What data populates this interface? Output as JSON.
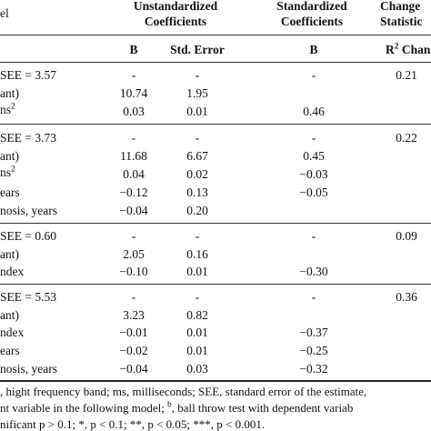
{
  "table": {
    "header": {
      "col_model": "el",
      "col_unstd": [
        "Unstandardized",
        "Coefficients"
      ],
      "col_std": [
        "Standardized",
        "Coefficients"
      ],
      "col_change": [
        "Change",
        "Statistic"
      ],
      "sub_b1": "B",
      "sub_se": "Std. Error",
      "sub_b2": "B",
      "sub_r2_pre": "R",
      "sub_r2_sup": "2",
      "sub_r2_post": " Chang"
    },
    "blocks": [
      {
        "rows": [
          {
            "label": "SEE = 3.57",
            "sup": "",
            "b": "-",
            "se": "-",
            "beta": "-",
            "r2": "0.21"
          },
          {
            "label": "ant)",
            "sup": "",
            "b": "10.74",
            "se": "1.95",
            "beta": "",
            "r2": ""
          },
          {
            "label": "ns",
            "sup": "2",
            "b": "0.03",
            "se": "0.01",
            "beta": "0.46",
            "r2": ""
          }
        ]
      },
      {
        "rows": [
          {
            "label": "SEE = 3.73",
            "sup": "",
            "b": "-",
            "se": "-",
            "beta": "-",
            "r2": "0.22"
          },
          {
            "label": "ant)",
            "sup": "",
            "b": "11.68",
            "se": "6.67",
            "beta": "0.45",
            "r2": ""
          },
          {
            "label": "ns",
            "sup": "2",
            "b": "0.04",
            "se": "0.02",
            "beta": "−0.03",
            "r2": ""
          },
          {
            "label": "ears",
            "sup": "",
            "b": "−0.12",
            "se": "0.13",
            "beta": "−0.05",
            "r2": ""
          },
          {
            "label": "nosis, years",
            "sup": "",
            "b": "−0.04",
            "se": "0.20",
            "beta": "",
            "r2": ""
          }
        ]
      },
      {
        "rows": [
          {
            "label": "SEE = 0.60",
            "sup": "",
            "b": "-",
            "se": "-",
            "beta": "-",
            "r2": "0.09"
          },
          {
            "label": "ant)",
            "sup": "",
            "b": "2.05",
            "se": "0.16",
            "beta": "",
            "r2": ""
          },
          {
            "label": "ndex",
            "sup": "",
            "b": "−0.10",
            "se": "0.01",
            "beta": "−0.30",
            "r2": ""
          }
        ]
      },
      {
        "rows": [
          {
            "label": "SEE = 5.53",
            "sup": "",
            "b": "-",
            "se": "-",
            "beta": "-",
            "r2": "0.36"
          },
          {
            "label": "ant)",
            "sup": "",
            "b": "3.23",
            "se": "0.82",
            "beta": "",
            "r2": ""
          },
          {
            "label": "ndex",
            "sup": "",
            "b": "−0.01",
            "se": "0.01",
            "beta": "−0.37",
            "r2": ""
          },
          {
            "label": "ears",
            "sup": "",
            "b": "−0.02",
            "se": "0.01",
            "beta": "−0.25",
            "r2": ""
          },
          {
            "label": "nosis, years",
            "sup": "",
            "b": "−0.04",
            "se": "0.03",
            "beta": "−0.32",
            "r2": ""
          }
        ]
      }
    ]
  },
  "footnotes": {
    "line1": ", hight frequency band; ms, milliseconds; SEE, standard error of the estimate,",
    "line2_a": "nt variable in the following model; ",
    "line2_sup": "b",
    "line2_b": ", ball throw test with dependent variab",
    "line3": "nificant p > 0.1; *, p < 0.1; **, p < 0.05; ***, p < 0.001."
  }
}
